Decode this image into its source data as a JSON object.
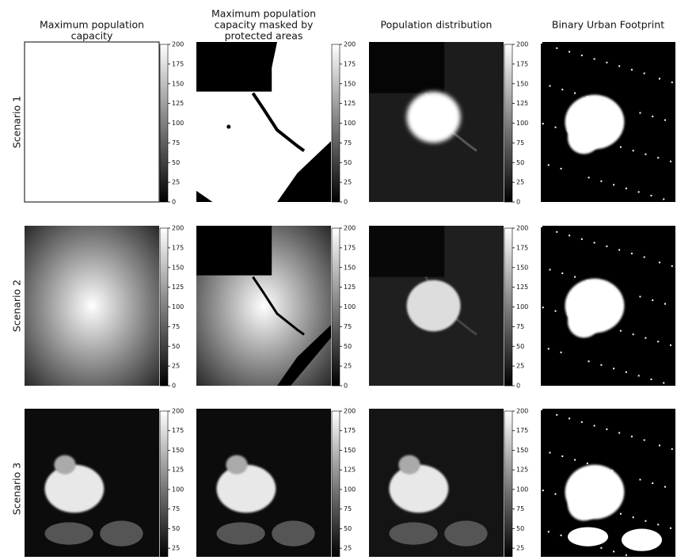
{
  "columns": [
    {
      "title": [
        "Maximum population",
        "capacity"
      ]
    },
    {
      "title": [
        "Maximum population",
        "capacity masked by",
        "protected areas"
      ]
    },
    {
      "title": [
        "Population distribution"
      ]
    },
    {
      "title": [
        "Binary Urban Footprint"
      ]
    }
  ],
  "rows": [
    {
      "label": "Scenario 1",
      "colorbar": {
        "lim": [
          0,
          200
        ],
        "ticks": [
          0,
          25,
          50,
          75,
          100,
          125,
          150,
          175,
          200
        ]
      }
    },
    {
      "label": "Scenario 2",
      "colorbar": {
        "lim": [
          0,
          200
        ],
        "ticks": [
          0,
          25,
          50,
          75,
          100,
          125,
          150,
          175,
          200
        ]
      }
    },
    {
      "label": "Scenario 3",
      "colorbar": {
        "lim": [
          14,
          200
        ],
        "ticks": [
          25,
          50,
          75,
          100,
          125,
          150,
          175,
          200
        ]
      }
    }
  ]
}
